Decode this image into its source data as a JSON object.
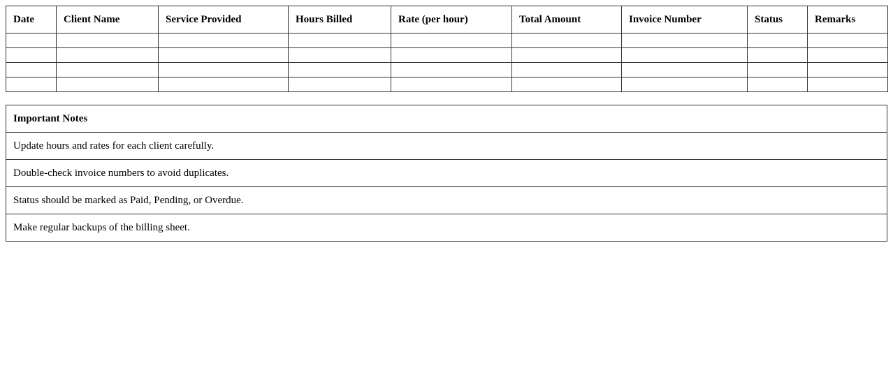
{
  "billing_table": {
    "columns": [
      "Date",
      "Client Name",
      "Service Provided",
      "Hours Billed",
      "Rate (per hour)",
      "Total Amount",
      "Invoice Number",
      "Status",
      "Remarks"
    ],
    "rows": [
      [
        "",
        "",
        "",
        "",
        "",
        "",
        "",
        "",
        ""
      ],
      [
        "",
        "",
        "",
        "",
        "",
        "",
        "",
        "",
        ""
      ],
      [
        "",
        "",
        "",
        "",
        "",
        "",
        "",
        "",
        ""
      ],
      [
        "",
        "",
        "",
        "",
        "",
        "",
        "",
        "",
        ""
      ]
    ]
  },
  "notes": {
    "title": "Important Notes",
    "items": [
      "Update hours and rates for each client carefully.",
      "Double-check invoice numbers to avoid duplicates.",
      "Status should be marked as Paid, Pending, or Overdue.",
      "Make regular backups of the billing sheet."
    ]
  }
}
